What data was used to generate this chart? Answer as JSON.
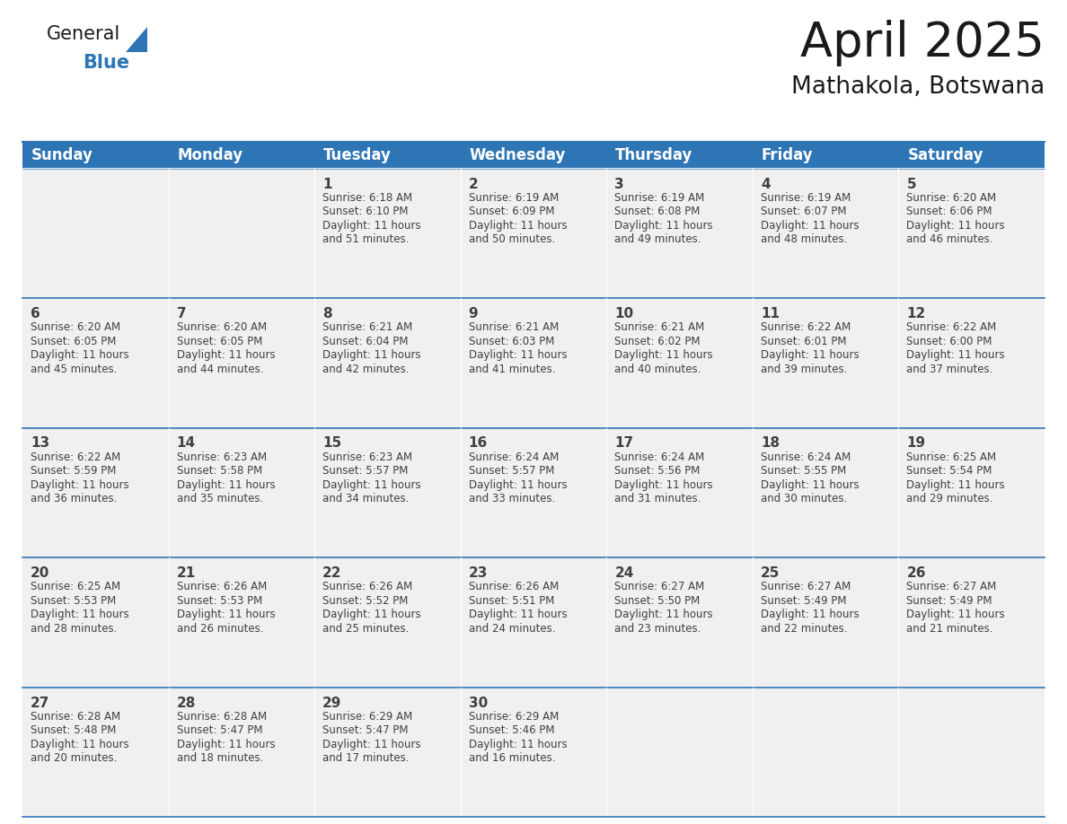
{
  "title": "April 2025",
  "subtitle": "Mathakola, Botswana",
  "header_bg": "#2E75B6",
  "header_text_color": "#FFFFFF",
  "cell_bg": "#F0F0F0",
  "border_color": "#2E75B6",
  "text_color": "#404040",
  "days_of_week": [
    "Sunday",
    "Monday",
    "Tuesday",
    "Wednesday",
    "Thursday",
    "Friday",
    "Saturday"
  ],
  "calendar_data": [
    [
      {
        "day": "",
        "sunrise": "",
        "sunset": "",
        "daylight": ""
      },
      {
        "day": "",
        "sunrise": "",
        "sunset": "",
        "daylight": ""
      },
      {
        "day": "1",
        "sunrise": "6:18 AM",
        "sunset": "6:10 PM",
        "daylight": "11 hours and 51 minutes."
      },
      {
        "day": "2",
        "sunrise": "6:19 AM",
        "sunset": "6:09 PM",
        "daylight": "11 hours and 50 minutes."
      },
      {
        "day": "3",
        "sunrise": "6:19 AM",
        "sunset": "6:08 PM",
        "daylight": "11 hours and 49 minutes."
      },
      {
        "day": "4",
        "sunrise": "6:19 AM",
        "sunset": "6:07 PM",
        "daylight": "11 hours and 48 minutes."
      },
      {
        "day": "5",
        "sunrise": "6:20 AM",
        "sunset": "6:06 PM",
        "daylight": "11 hours and 46 minutes."
      }
    ],
    [
      {
        "day": "6",
        "sunrise": "6:20 AM",
        "sunset": "6:05 PM",
        "daylight": "11 hours and 45 minutes."
      },
      {
        "day": "7",
        "sunrise": "6:20 AM",
        "sunset": "6:05 PM",
        "daylight": "11 hours and 44 minutes."
      },
      {
        "day": "8",
        "sunrise": "6:21 AM",
        "sunset": "6:04 PM",
        "daylight": "11 hours and 42 minutes."
      },
      {
        "day": "9",
        "sunrise": "6:21 AM",
        "sunset": "6:03 PM",
        "daylight": "11 hours and 41 minutes."
      },
      {
        "day": "10",
        "sunrise": "6:21 AM",
        "sunset": "6:02 PM",
        "daylight": "11 hours and 40 minutes."
      },
      {
        "day": "11",
        "sunrise": "6:22 AM",
        "sunset": "6:01 PM",
        "daylight": "11 hours and 39 minutes."
      },
      {
        "day": "12",
        "sunrise": "6:22 AM",
        "sunset": "6:00 PM",
        "daylight": "11 hours and 37 minutes."
      }
    ],
    [
      {
        "day": "13",
        "sunrise": "6:22 AM",
        "sunset": "5:59 PM",
        "daylight": "11 hours and 36 minutes."
      },
      {
        "day": "14",
        "sunrise": "6:23 AM",
        "sunset": "5:58 PM",
        "daylight": "11 hours and 35 minutes."
      },
      {
        "day": "15",
        "sunrise": "6:23 AM",
        "sunset": "5:57 PM",
        "daylight": "11 hours and 34 minutes."
      },
      {
        "day": "16",
        "sunrise": "6:24 AM",
        "sunset": "5:57 PM",
        "daylight": "11 hours and 33 minutes."
      },
      {
        "day": "17",
        "sunrise": "6:24 AM",
        "sunset": "5:56 PM",
        "daylight": "11 hours and 31 minutes."
      },
      {
        "day": "18",
        "sunrise": "6:24 AM",
        "sunset": "5:55 PM",
        "daylight": "11 hours and 30 minutes."
      },
      {
        "day": "19",
        "sunrise": "6:25 AM",
        "sunset": "5:54 PM",
        "daylight": "11 hours and 29 minutes."
      }
    ],
    [
      {
        "day": "20",
        "sunrise": "6:25 AM",
        "sunset": "5:53 PM",
        "daylight": "11 hours and 28 minutes."
      },
      {
        "day": "21",
        "sunrise": "6:26 AM",
        "sunset": "5:53 PM",
        "daylight": "11 hours and 26 minutes."
      },
      {
        "day": "22",
        "sunrise": "6:26 AM",
        "sunset": "5:52 PM",
        "daylight": "11 hours and 25 minutes."
      },
      {
        "day": "23",
        "sunrise": "6:26 AM",
        "sunset": "5:51 PM",
        "daylight": "11 hours and 24 minutes."
      },
      {
        "day": "24",
        "sunrise": "6:27 AM",
        "sunset": "5:50 PM",
        "daylight": "11 hours and 23 minutes."
      },
      {
        "day": "25",
        "sunrise": "6:27 AM",
        "sunset": "5:49 PM",
        "daylight": "11 hours and 22 minutes."
      },
      {
        "day": "26",
        "sunrise": "6:27 AM",
        "sunset": "5:49 PM",
        "daylight": "11 hours and 21 minutes."
      }
    ],
    [
      {
        "day": "27",
        "sunrise": "6:28 AM",
        "sunset": "5:48 PM",
        "daylight": "11 hours and 20 minutes."
      },
      {
        "day": "28",
        "sunrise": "6:28 AM",
        "sunset": "5:47 PM",
        "daylight": "11 hours and 18 minutes."
      },
      {
        "day": "29",
        "sunrise": "6:29 AM",
        "sunset": "5:47 PM",
        "daylight": "11 hours and 17 minutes."
      },
      {
        "day": "30",
        "sunrise": "6:29 AM",
        "sunset": "5:46 PM",
        "daylight": "11 hours and 16 minutes."
      },
      {
        "day": "",
        "sunrise": "",
        "sunset": "",
        "daylight": ""
      },
      {
        "day": "",
        "sunrise": "",
        "sunset": "",
        "daylight": ""
      },
      {
        "day": "",
        "sunrise": "",
        "sunset": "",
        "daylight": ""
      }
    ]
  ],
  "logo_general_color": "#1a1a1a",
  "logo_blue_color": "#2E75B6",
  "title_fontsize": 38,
  "subtitle_fontsize": 19,
  "header_fontsize": 12,
  "day_num_fontsize": 11,
  "cell_text_fontsize": 8.5
}
